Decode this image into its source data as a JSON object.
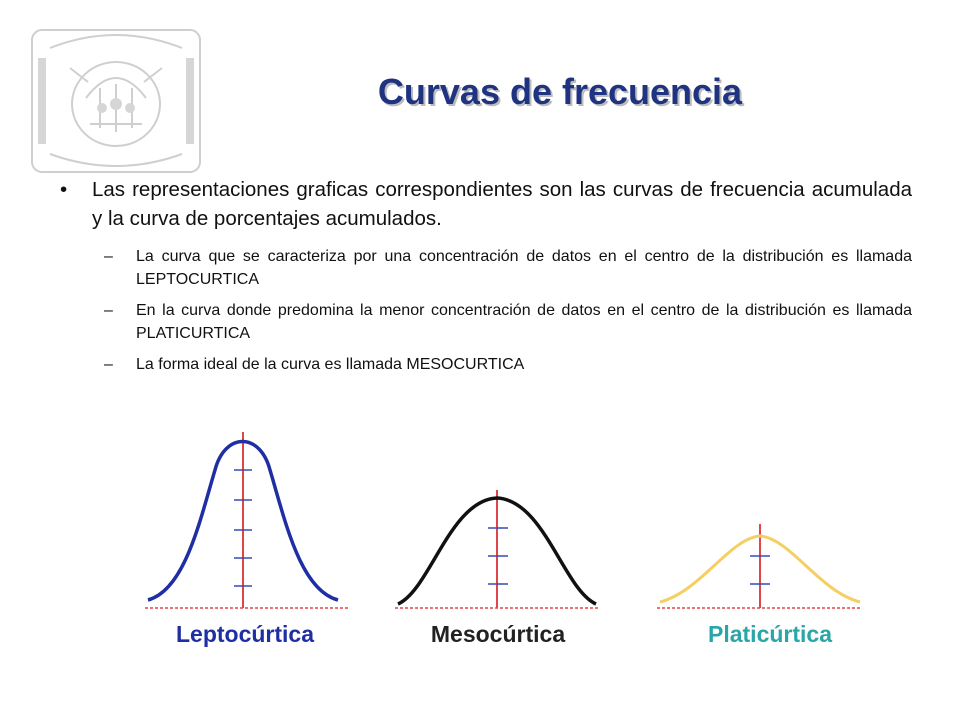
{
  "slide": {
    "title": "Curvas de frecuencia",
    "bullet": {
      "marker": "•",
      "text": "Las representaciones graficas correspondientes son las curvas de frecuencia acumulada y la curva de porcentajes acumulados."
    },
    "sub_bullets": [
      {
        "marker": "–",
        "text": "La curva que se caracteriza por una concentración de datos en el centro de la distribución es llamada LEPTOCURTICA"
      },
      {
        "marker": "–",
        "text": "En la curva donde predomina la menor concentración de datos en el centro de la distribución es llamada PLATICURTICA"
      },
      {
        "marker": "–",
        "text": "La forma ideal de la curva es llamada MESOCURTICA"
      }
    ]
  },
  "figure": {
    "curves": [
      {
        "label": "Leptocúrtica",
        "stroke_color": "#1f2fa3",
        "label_color": "#1f2fa3"
      },
      {
        "label": "Mesocúrtica",
        "stroke_color": "#111111",
        "label_color": "#222222"
      },
      {
        "label": "Platicúrtica",
        "stroke_color": "#f5cf63",
        "label_color": "#2aa6a6"
      }
    ],
    "axis_color": "#e0454a"
  }
}
